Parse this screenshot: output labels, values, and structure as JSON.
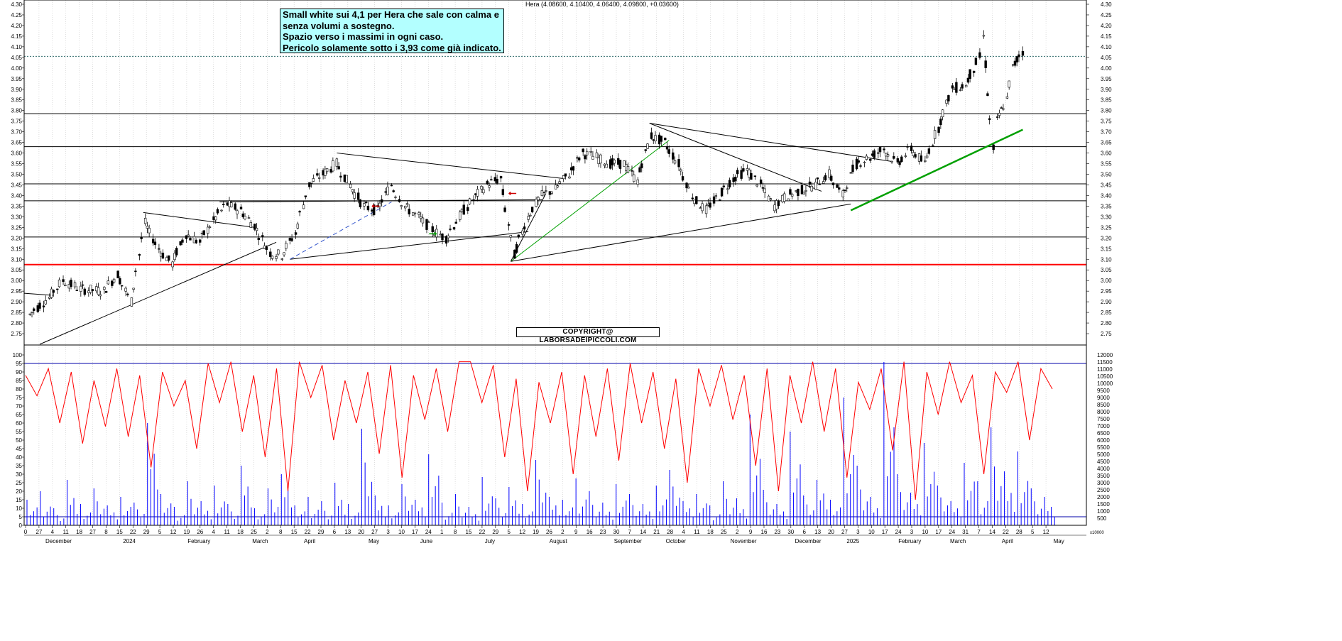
{
  "header": {
    "ohlc_text": "Hera (4.08600, 4.10400, 4.06400, 4.09800, +0.03600)"
  },
  "note": {
    "lines": [
      "Small white sui 4,1 per Hera che sale con calma e",
      "senza volumi a sostegno.",
      "Spazio verso i massimi in ogni caso.",
      "Pericolo solamente sotto i 3,93 come già indicato."
    ]
  },
  "copyright": "COPYRIGHT@ LABORSADEIPICCOLI.COM",
  "colors": {
    "support_line": "#ff0000",
    "trend_green": "#00a000",
    "oscillator": "#ff0000",
    "volume": "#0000ff",
    "note_bg": "#b3ffff",
    "candle_up": "#ffffff",
    "candle_down": "#000000"
  },
  "chart_data": [
    {
      "type": "candlestick",
      "title": "Hera",
      "ylim": [
        2.7,
        4.3
      ],
      "y_ticks": [
        "4.30",
        "4.25",
        "4.20",
        "4.15",
        "4.10",
        "4.05",
        "4.00",
        "3.95",
        "3.90",
        "3.85",
        "3.80",
        "3.75",
        "3.70",
        "3.65",
        "3.60",
        "3.55",
        "3.50",
        "3.45",
        "3.40",
        "3.35",
        "3.30",
        "3.25",
        "3.20",
        "3.15",
        "3.10",
        "3.05",
        "3.00",
        "2.95",
        "2.90",
        "2.85",
        "2.80",
        "2.75"
      ],
      "horizontal_levels": [
        3.785,
        3.63,
        3.455,
        3.375,
        3.205,
        3.075,
        4.055
      ],
      "support_level": 3.075,
      "last_close": 4.098,
      "close_path": [
        [
          "2023-12-01",
          2.84
        ],
        [
          "2023-12-11",
          2.92
        ],
        [
          "2023-12-18",
          3.0
        ],
        [
          "2023-12-27",
          2.96
        ],
        [
          "2024-01-08",
          2.95
        ],
        [
          "2024-01-15",
          3.03
        ],
        [
          "2024-01-22",
          2.9
        ],
        [
          "2024-01-29",
          3.27
        ],
        [
          "2024-02-05",
          3.15
        ],
        [
          "2024-02-12",
          3.08
        ],
        [
          "2024-02-19",
          3.22
        ],
        [
          "2024-02-26",
          3.18
        ],
        [
          "2024-03-04",
          3.28
        ],
        [
          "2024-03-11",
          3.36
        ],
        [
          "2024-03-18",
          3.33
        ],
        [
          "2024-03-25",
          3.26
        ],
        [
          "2024-04-02",
          3.13
        ],
        [
          "2024-04-08",
          3.12
        ],
        [
          "2024-04-15",
          3.22
        ],
        [
          "2024-04-22",
          3.45
        ],
        [
          "2024-04-29",
          3.5
        ],
        [
          "2024-05-06",
          3.55
        ],
        [
          "2024-05-13",
          3.45
        ],
        [
          "2024-05-20",
          3.35
        ],
        [
          "2024-05-27",
          3.33
        ],
        [
          "2024-06-03",
          3.45
        ],
        [
          "2024-06-10",
          3.35
        ],
        [
          "2024-06-17",
          3.3
        ],
        [
          "2024-06-24",
          3.24
        ],
        [
          "2024-07-01",
          3.2
        ],
        [
          "2024-07-08",
          3.3
        ],
        [
          "2024-07-15",
          3.38
        ],
        [
          "2024-07-22",
          3.45
        ],
        [
          "2024-07-29",
          3.48
        ],
        [
          "2024-08-05",
          3.12
        ],
        [
          "2024-08-12",
          3.3
        ],
        [
          "2024-08-19",
          3.4
        ],
        [
          "2024-08-26",
          3.43
        ],
        [
          "2024-09-02",
          3.5
        ],
        [
          "2024-09-09",
          3.6
        ],
        [
          "2024-09-16",
          3.58
        ],
        [
          "2024-09-23",
          3.55
        ],
        [
          "2024-09-30",
          3.55
        ],
        [
          "2024-10-07",
          3.47
        ],
        [
          "2024-10-14",
          3.68
        ],
        [
          "2024-10-21",
          3.65
        ],
        [
          "2024-10-28",
          3.55
        ],
        [
          "2024-11-04",
          3.4
        ],
        [
          "2024-11-11",
          3.33
        ],
        [
          "2024-11-18",
          3.4
        ],
        [
          "2024-11-25",
          3.48
        ],
        [
          "2024-12-02",
          3.52
        ],
        [
          "2024-12-09",
          3.45
        ],
        [
          "2024-12-16",
          3.35
        ],
        [
          "2024-12-23",
          3.4
        ],
        [
          "2025-01-06",
          3.45
        ],
        [
          "2025-01-13",
          3.5
        ],
        [
          "2025-01-20",
          3.4
        ],
        [
          "2025-01-27",
          3.55
        ],
        [
          "2025-02-03",
          3.58
        ],
        [
          "2025-02-10",
          3.62
        ],
        [
          "2025-02-17",
          3.55
        ],
        [
          "2025-02-24",
          3.62
        ],
        [
          "2025-03-03",
          3.55
        ],
        [
          "2025-03-10",
          3.72
        ],
        [
          "2025-03-17",
          3.9
        ],
        [
          "2025-03-24",
          3.92
        ],
        [
          "2025-03-31",
          4.05
        ],
        [
          "2025-04-02",
          4.15
        ],
        [
          "2025-04-07",
          3.62
        ],
        [
          "2025-04-09",
          3.75
        ],
        [
          "2025-04-14",
          3.85
        ],
        [
          "2025-04-17",
          4.0
        ],
        [
          "2025-04-22",
          4.08
        ],
        [
          "2025-04-24",
          4.098
        ]
      ]
    },
    {
      "type": "line",
      "series": [
        {
          "values": [
            88,
            76,
            92,
            60,
            90,
            48,
            85,
            58,
            92,
            52,
            88,
            34,
            90,
            70,
            85,
            45,
            95,
            72,
            96,
            55,
            88,
            40,
            92,
            20,
            96,
            75,
            94,
            50,
            85,
            60,
            90,
            42,
            94,
            28,
            88,
            62,
            92,
            55,
            96,
            96,
            72,
            94,
            40,
            86,
            20,
            84,
            60,
            90,
            30,
            88,
            52,
            92,
            38,
            95,
            60,
            90,
            45,
            86,
            25,
            92,
            70,
            94,
            62,
            88,
            35,
            92,
            20,
            88,
            60,
            96,
            55,
            92,
            28,
            84,
            68,
            92,
            44,
            96,
            15,
            90,
            65,
            96,
            72,
            88,
            30,
            90,
            78,
            96,
            50,
            92,
            80
          ]
        }
      ],
      "ylim": [
        0,
        100
      ],
      "y_ticks": [
        "100",
        "95",
        "90",
        "85",
        "80",
        "75",
        "70",
        "65",
        "60",
        "55",
        "50",
        "45",
        "40",
        "35",
        "30",
        "25",
        "20",
        "15",
        "10",
        "5",
        "0"
      ],
      "reference_levels": [
        95,
        5
      ]
    },
    {
      "type": "bar",
      "ylim": [
        0,
        12000
      ],
      "y_ticks": [
        "12000",
        "11500",
        "11000",
        "10500",
        "10000",
        "9500",
        "9000",
        "8500",
        "8000",
        "7500",
        "7000",
        "6500",
        "6000",
        "5500",
        "5000",
        "4500",
        "4000",
        "3500",
        "3000",
        "2500",
        "2000",
        "1500",
        "1000",
        "500"
      ],
      "axis_unit_label": "x10000",
      "values": [
        1800,
        2400,
        1200,
        3200,
        1500,
        2600,
        1400,
        2000,
        1600,
        7200,
        2200,
        1300,
        3100,
        1700,
        2800,
        1500,
        4200,
        1200,
        2600,
        3600,
        1400,
        2000,
        1700,
        3000,
        1500,
        6800,
        2100,
        1400,
        2900,
        1800,
        5000,
        1600,
        2200,
        1300,
        3400,
        1900,
        2700,
        1500,
        4600,
        2000,
        1800,
        3300,
        2400,
        1600,
        2900,
        2200,
        1500,
        2800,
        3900,
        1700,
        2200,
        1400,
        3100,
        1900,
        7800,
        2500,
        1500,
        6600,
        2100,
        3200,
        1800,
        9000,
        4200,
        2000,
        11500,
        3600,
        2300,
        5800,
        2800,
        1700,
        4400,
        3100,
        6900,
        3800,
        5200,
        2600,
        2000
      ]
    }
  ],
  "x_axis": {
    "day_labels": [
      "0",
      "27",
      "4",
      "11",
      "18",
      "27",
      "8",
      "15",
      "22",
      "29",
      "5",
      "12",
      "19",
      "26",
      "4",
      "11",
      "18",
      "25",
      "2",
      "8",
      "15",
      "22",
      "29",
      "6",
      "13",
      "20",
      "27",
      "3",
      "10",
      "17",
      "24",
      "1",
      "8",
      "15",
      "22",
      "29",
      "5",
      "12",
      "19",
      "26",
      "2",
      "9",
      "16",
      "23",
      "30",
      "7",
      "14",
      "21",
      "28",
      "4",
      "11",
      "18",
      "25",
      "2",
      "9",
      "16",
      "23",
      "30",
      "6",
      "13",
      "20",
      "27",
      "3",
      "10",
      "17",
      "24",
      "3",
      "10",
      "17",
      "24",
      "31",
      "7",
      "14",
      "22",
      "28",
      "5",
      "12"
    ],
    "month_labels": [
      "December",
      "2024",
      "February",
      "March",
      "April",
      "May",
      "June",
      "July",
      "August",
      "September",
      "October",
      "November",
      "December",
      "2025",
      "February",
      "March",
      "April",
      "May"
    ]
  }
}
